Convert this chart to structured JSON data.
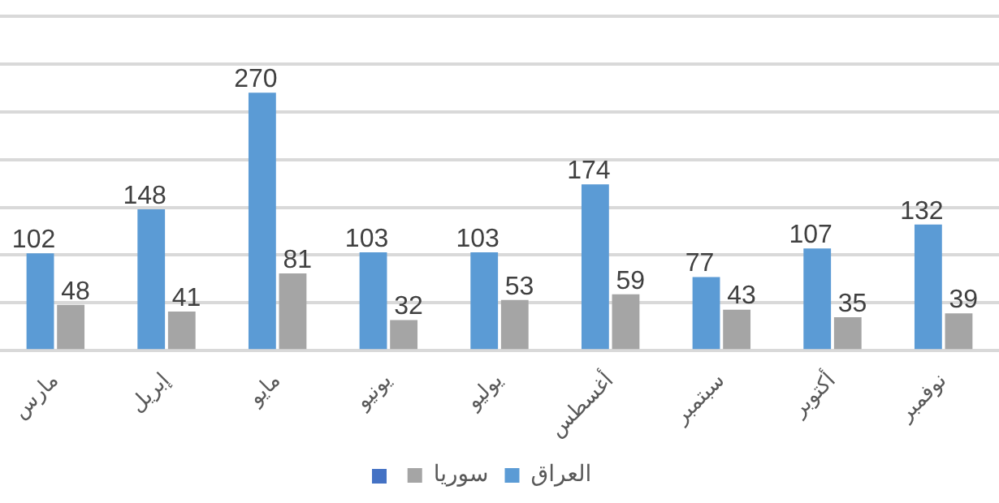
{
  "chart_data": {
    "type": "bar",
    "categories": [
      "مارس",
      "إبريل",
      "مايو",
      "يونيو",
      "يوليو",
      "أغسطس",
      "سبتمبر",
      "أكتوبر",
      "نوفمبر"
    ],
    "series": [
      {
        "name": "العراق",
        "color": "#5b9bd5",
        "values": [
          102,
          148,
          270,
          103,
          103,
          174,
          77,
          107,
          132
        ]
      },
      {
        "name": "سوريا",
        "color": "#a5a5a5",
        "values": [
          48,
          41,
          81,
          32,
          53,
          59,
          43,
          35,
          39
        ]
      }
    ],
    "ylim": [
      0,
      350
    ],
    "yticks": [
      0,
      50,
      100,
      150,
      200,
      250,
      300,
      350
    ],
    "grid": "y",
    "tick_labels": "x",
    "legend": "bottom",
    "data_labels": true
  }
}
